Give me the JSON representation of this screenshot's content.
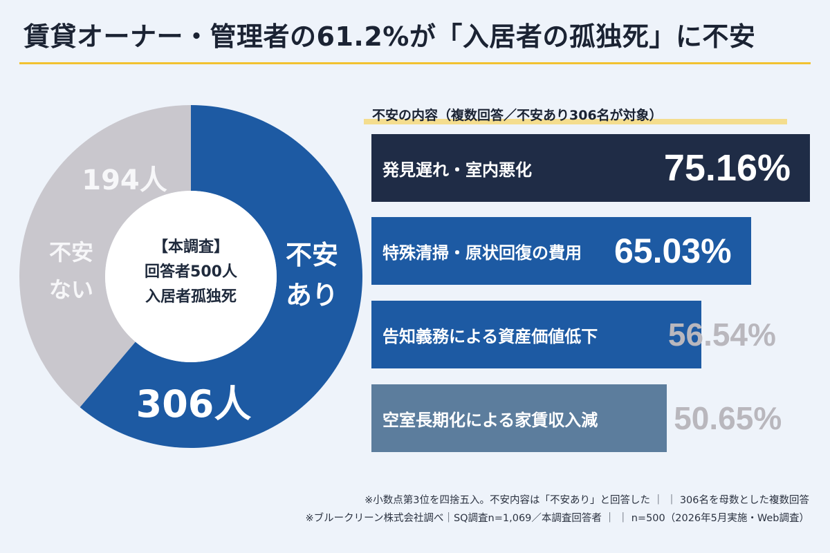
{
  "title": "賃貸オーナー・管理者の61.2%が「入居者の孤独死」に不安",
  "colors": {
    "accent_yellow": "#f2c230",
    "anxious_blue": "#1d5aa3",
    "not_anxious_gray": "#c9c7cd",
    "dark_navy": "#1f2c46",
    "muted_blue": "#5c7d9d"
  },
  "donut": {
    "center_lines": [
      "【本調査】",
      "回答者500人",
      "入居者孤独死"
    ],
    "segments": [
      {
        "label_lines": [
          "不安",
          "あり"
        ],
        "count_label": "306人",
        "value": 306
      },
      {
        "label_lines": [
          "不安",
          "ない"
        ],
        "count_label": "194人",
        "value": 194
      }
    ]
  },
  "chart_data": [
    {
      "type": "pie",
      "categories": [
        "不安あり",
        "不安ない"
      ],
      "values": [
        306,
        194
      ]
    },
    {
      "type": "bar",
      "title": "不安の内容（複数回答／不安あり306名が対象）",
      "categories": [
        "発見遅れ・室内悪化",
        "特殊清掃・原状回復の費用",
        "告知義務による資産価値低下",
        "空室長期化による家賃収入減"
      ],
      "values": [
        75.16,
        65.03,
        56.54,
        50.65
      ],
      "value_labels": [
        "75.16%",
        "65.03%",
        "56.54%",
        "50.65%"
      ]
    }
  ],
  "footnotes": [
    "※小数点第3位を四捨五入。不安内容は「不安あり」と回答した ｜ ｜ 306名を母数とした複数回答",
    "※ブルークリーン株式会社調べ｜SQ調査n=1,069／本調査回答者 ｜ ｜ n=500（2026年5月実施・Web調査）"
  ]
}
